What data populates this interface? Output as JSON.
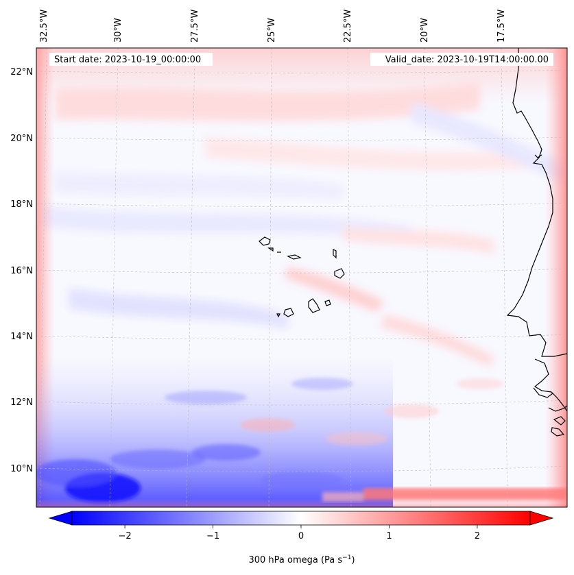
{
  "map": {
    "start_date_label": "Start date: 2023-10-19_00:00:00",
    "valid_date_label": "Valid_date: 2023-10-19T14:00:00.00",
    "lon_labels": [
      "32.5°W",
      "30°W",
      "27.5°W",
      "25°W",
      "22.5°W",
      "20°W",
      "17.5°W"
    ],
    "lat_labels": [
      "22°N",
      "20°N",
      "18°N",
      "16°N",
      "14°N",
      "12°N",
      "10°N"
    ],
    "field": "300 hPa omega",
    "features": [
      "cape-verde-islands",
      "west-africa-coastline"
    ],
    "colors": {
      "negative": "#0000ff",
      "neutral": "#ffffff",
      "positive": "#ff0000",
      "coast": "#000000",
      "gridline": "#bbbbbb"
    }
  },
  "colorbar": {
    "ticks": [
      "−2",
      "−1",
      "0",
      "1",
      "2"
    ],
    "tick_values": [
      -2,
      -1,
      0,
      1,
      2
    ],
    "range": [
      -2.6,
      2.6
    ],
    "title_main": "300 hPa omega (Pa s",
    "title_exp": "−1",
    "title_end": ")",
    "colormap": "bwr",
    "extend": "both"
  }
}
